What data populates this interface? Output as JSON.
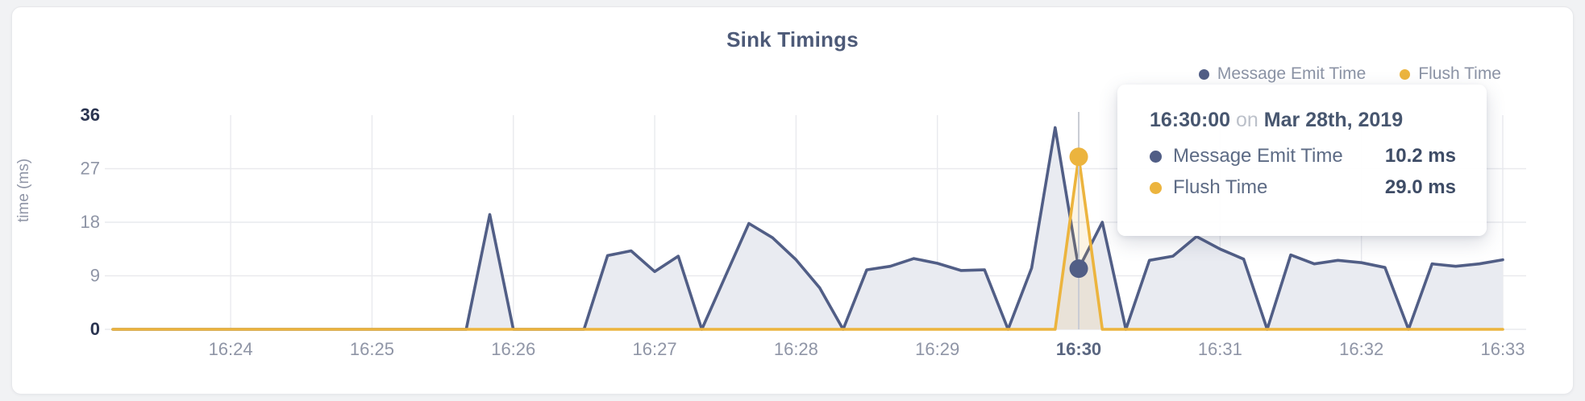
{
  "page": {
    "title": "Sink Timings"
  },
  "colors": {
    "page_bg": "#f1f2f4",
    "card_bg": "#ffffff",
    "grid": "#e9eaee",
    "crosshair": "#c9ccd4",
    "tick_label": "#8f95a6",
    "tick_label_emphasis": "#2b3551",
    "tick_label_hover": "#5a6680",
    "navy": "#515e86",
    "navy_fill": "#e9ebf1",
    "yellow": "#ecb43e",
    "yellow_fill_rgba": "rgba(236,180,62,0.14)"
  },
  "legend": {
    "items": [
      {
        "label": "Message Emit Time",
        "color": "#515e86"
      },
      {
        "label": "Flush Time",
        "color": "#ecb43e"
      }
    ]
  },
  "tooltip": {
    "time": "16:30:00",
    "connector": "on",
    "date": "Mar 28th, 2019",
    "rows": [
      {
        "label": "Message Emit Time",
        "value": "10.2 ms",
        "color": "#515e86"
      },
      {
        "label": "Flush Time",
        "value": "29.0 ms",
        "color": "#ecb43e"
      }
    ]
  },
  "chart_data": {
    "type": "area",
    "title": "Sink Timings",
    "xlabel": "",
    "ylabel": "time (ms)",
    "ylim": [
      0,
      36
    ],
    "y_ticks": [
      0,
      9,
      18,
      27,
      36
    ],
    "y_ticks_emphasized": [
      0,
      36
    ],
    "grid": "on",
    "legend_position": "top-right",
    "x_start": "16:23:10",
    "x_interval_seconds": 10,
    "x_tick_labels": [
      "16:24",
      "16:25",
      "16:26",
      "16:27",
      "16:28",
      "16:29",
      "16:30",
      "16:31",
      "16:32",
      "16:33"
    ],
    "x_tick_first_index": 5,
    "x_tick_step": 6,
    "hover": {
      "time": "16:30:00",
      "index": 41,
      "x_tick_label": "16:30"
    },
    "series": [
      {
        "name": "Message Emit Time",
        "color": "#515e86",
        "fill": "#e9ebf1",
        "hover_value": 10.2,
        "values": [
          0,
          0,
          0,
          0,
          0,
          0,
          0,
          0,
          0,
          0,
          0,
          0,
          0,
          0,
          0,
          0,
          19.3,
          0,
          0,
          0,
          0,
          12.4,
          13.2,
          9.7,
          12.3,
          0,
          8.9,
          17.8,
          15.4,
          11.7,
          7,
          0,
          10,
          10.6,
          11.9,
          11.1,
          9.9,
          10,
          0,
          10.3,
          33.9,
          10.2,
          18,
          0,
          11.6,
          12.3,
          15.6,
          13.5,
          11.8,
          0,
          12.5,
          11,
          11.6,
          11.2,
          10.4,
          0,
          11,
          10.6,
          11,
          11.7
        ]
      },
      {
        "name": "Flush Time",
        "color": "#ecb43e",
        "fill": "rgba(236,180,62,0.14)",
        "hover_value": 29.0,
        "values": [
          0,
          0,
          0,
          0,
          0,
          0,
          0,
          0,
          0,
          0,
          0,
          0,
          0,
          0,
          0,
          0,
          0,
          0,
          0,
          0,
          0,
          0,
          0,
          0,
          0,
          0,
          0,
          0,
          0,
          0,
          0,
          0,
          0,
          0,
          0,
          0,
          0,
          0,
          0,
          0,
          0,
          29,
          0,
          0,
          0,
          0,
          0,
          0,
          0,
          0,
          0,
          0,
          0,
          0,
          0,
          0,
          0,
          0,
          0,
          0
        ]
      }
    ]
  }
}
